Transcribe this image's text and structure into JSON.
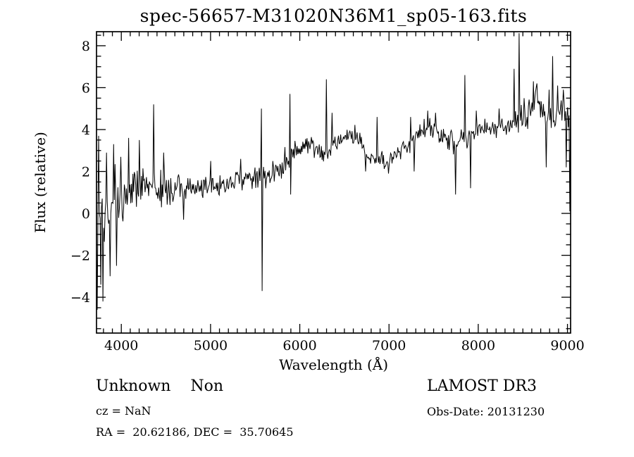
{
  "title": "spec-56657-M31020N36M1_sp05-163.fits",
  "annotations": {
    "class_text": "Unknown    Non",
    "cz_text": "cz = NaN",
    "radec_text": "RA =  20.62186, DEC =  35.70645",
    "survey_text": "LAMOST DR3",
    "obsdate_text": "Obs-Date: 20131230"
  },
  "colors": {
    "foreground": "#000000",
    "background": "#ffffff"
  },
  "chart_data": {
    "type": "line",
    "title": "spec-56657-M31020N36M1_sp05-163.fits",
    "xlabel": "Wavelength (Å)",
    "ylabel": "Flux (relative)",
    "xlim": [
      3722,
      9035
    ],
    "ylim": [
      -5.71,
      8.67
    ],
    "x_major_ticks": [
      4000,
      5000,
      6000,
      7000,
      8000,
      9000
    ],
    "x_minor_step": 100,
    "y_major_ticks": [
      -4,
      -2,
      0,
      2,
      4,
      6,
      8
    ],
    "y_minor_step": 0.5,
    "grid": false,
    "legend": null,
    "line_color": "#000000",
    "sampling_step_angstrom": 8,
    "noise_seed": 20131230,
    "continuum_anchors": [
      [
        3722,
        0.0,
        1.7
      ],
      [
        3760,
        0.1,
        1.6
      ],
      [
        3800,
        0.3,
        1.5
      ],
      [
        3850,
        0.3,
        1.3
      ],
      [
        3900,
        0.5,
        1.2
      ],
      [
        3950,
        0.7,
        1.1
      ],
      [
        4000,
        0.8,
        1.0
      ],
      [
        4100,
        1.0,
        0.9
      ],
      [
        4200,
        1.1,
        0.85
      ],
      [
        4300,
        1.2,
        0.8
      ],
      [
        4400,
        1.25,
        0.7
      ],
      [
        4500,
        1.3,
        0.6
      ],
      [
        4700,
        1.3,
        0.5
      ],
      [
        4900,
        1.3,
        0.45
      ],
      [
        5100,
        1.4,
        0.4
      ],
      [
        5300,
        1.55,
        0.4
      ],
      [
        5450,
        1.65,
        0.4
      ],
      [
        5560,
        1.7,
        0.4
      ],
      [
        5650,
        1.9,
        0.45
      ],
      [
        5750,
        2.1,
        0.45
      ],
      [
        5850,
        2.4,
        0.45
      ],
      [
        5920,
        2.9,
        0.45
      ],
      [
        6000,
        3.2,
        0.4
      ],
      [
        6100,
        3.4,
        0.4
      ],
      [
        6180,
        3.1,
        0.35
      ],
      [
        6250,
        2.7,
        0.35
      ],
      [
        6320,
        3.0,
        0.35
      ],
      [
        6420,
        3.4,
        0.35
      ],
      [
        6520,
        3.7,
        0.3
      ],
      [
        6600,
        3.8,
        0.3
      ],
      [
        6680,
        3.4,
        0.3
      ],
      [
        6740,
        2.7,
        0.3
      ],
      [
        6800,
        2.6,
        0.3
      ],
      [
        6900,
        2.5,
        0.3
      ],
      [
        6980,
        2.4,
        0.3
      ],
      [
        7060,
        2.8,
        0.3
      ],
      [
        7150,
        3.0,
        0.3
      ],
      [
        7250,
        3.5,
        0.35
      ],
      [
        7350,
        3.8,
        0.35
      ],
      [
        7450,
        4.1,
        0.4
      ],
      [
        7550,
        3.8,
        0.35
      ],
      [
        7650,
        3.6,
        0.35
      ],
      [
        7730,
        3.3,
        0.4
      ],
      [
        7800,
        3.7,
        0.4
      ],
      [
        7880,
        3.4,
        0.4
      ],
      [
        7950,
        3.9,
        0.35
      ],
      [
        8050,
        4.0,
        0.35
      ],
      [
        8150,
        4.0,
        0.35
      ],
      [
        8250,
        4.2,
        0.4
      ],
      [
        8350,
        4.3,
        0.45
      ],
      [
        8450,
        4.5,
        0.5
      ],
      [
        8560,
        4.6,
        0.5
      ],
      [
        8620,
        5.4,
        0.5
      ],
      [
        8670,
        5.4,
        0.5
      ],
      [
        8720,
        4.7,
        0.5
      ],
      [
        8800,
        4.6,
        0.5
      ],
      [
        8880,
        4.9,
        0.5
      ],
      [
        8950,
        4.8,
        0.5
      ],
      [
        9035,
        4.6,
        0.5
      ]
    ],
    "spike_features": [
      [
        3728,
        -4.6
      ],
      [
        3742,
        3.7
      ],
      [
        3770,
        -3.4
      ],
      [
        3795,
        -4.2
      ],
      [
        3830,
        2.9
      ],
      [
        3870,
        -3.0
      ],
      [
        3915,
        3.3
      ],
      [
        3945,
        -2.5
      ],
      [
        3995,
        2.7
      ],
      [
        4080,
        3.6
      ],
      [
        4200,
        3.5
      ],
      [
        4360,
        5.2
      ],
      [
        4470,
        2.9
      ],
      [
        4700,
        -0.3
      ],
      [
        5000,
        2.5
      ],
      [
        5340,
        2.6
      ],
      [
        5570,
        5.0
      ],
      [
        5578,
        -3.7
      ],
      [
        5892,
        5.7
      ],
      [
        5900,
        0.9
      ],
      [
        6298,
        6.4
      ],
      [
        6365,
        4.8
      ],
      [
        6740,
        2.0
      ],
      [
        6864,
        4.6
      ],
      [
        6990,
        1.9
      ],
      [
        7244,
        4.6
      ],
      [
        7283,
        2.0
      ],
      [
        7430,
        4.9
      ],
      [
        7520,
        4.8
      ],
      [
        7748,
        0.9
      ],
      [
        7850,
        6.6
      ],
      [
        7913,
        1.2
      ],
      [
        7975,
        4.9
      ],
      [
        8230,
        5.0
      ],
      [
        8405,
        6.9
      ],
      [
        8458,
        8.6
      ],
      [
        8510,
        5.5
      ],
      [
        8620,
        6.3
      ],
      [
        8660,
        6.2
      ],
      [
        8758,
        2.2
      ],
      [
        8795,
        5.9
      ],
      [
        8837,
        7.5
      ],
      [
        8890,
        6.1
      ],
      [
        8955,
        5.9
      ],
      [
        8987,
        2.2
      ],
      [
        9028,
        0.1
      ]
    ]
  }
}
